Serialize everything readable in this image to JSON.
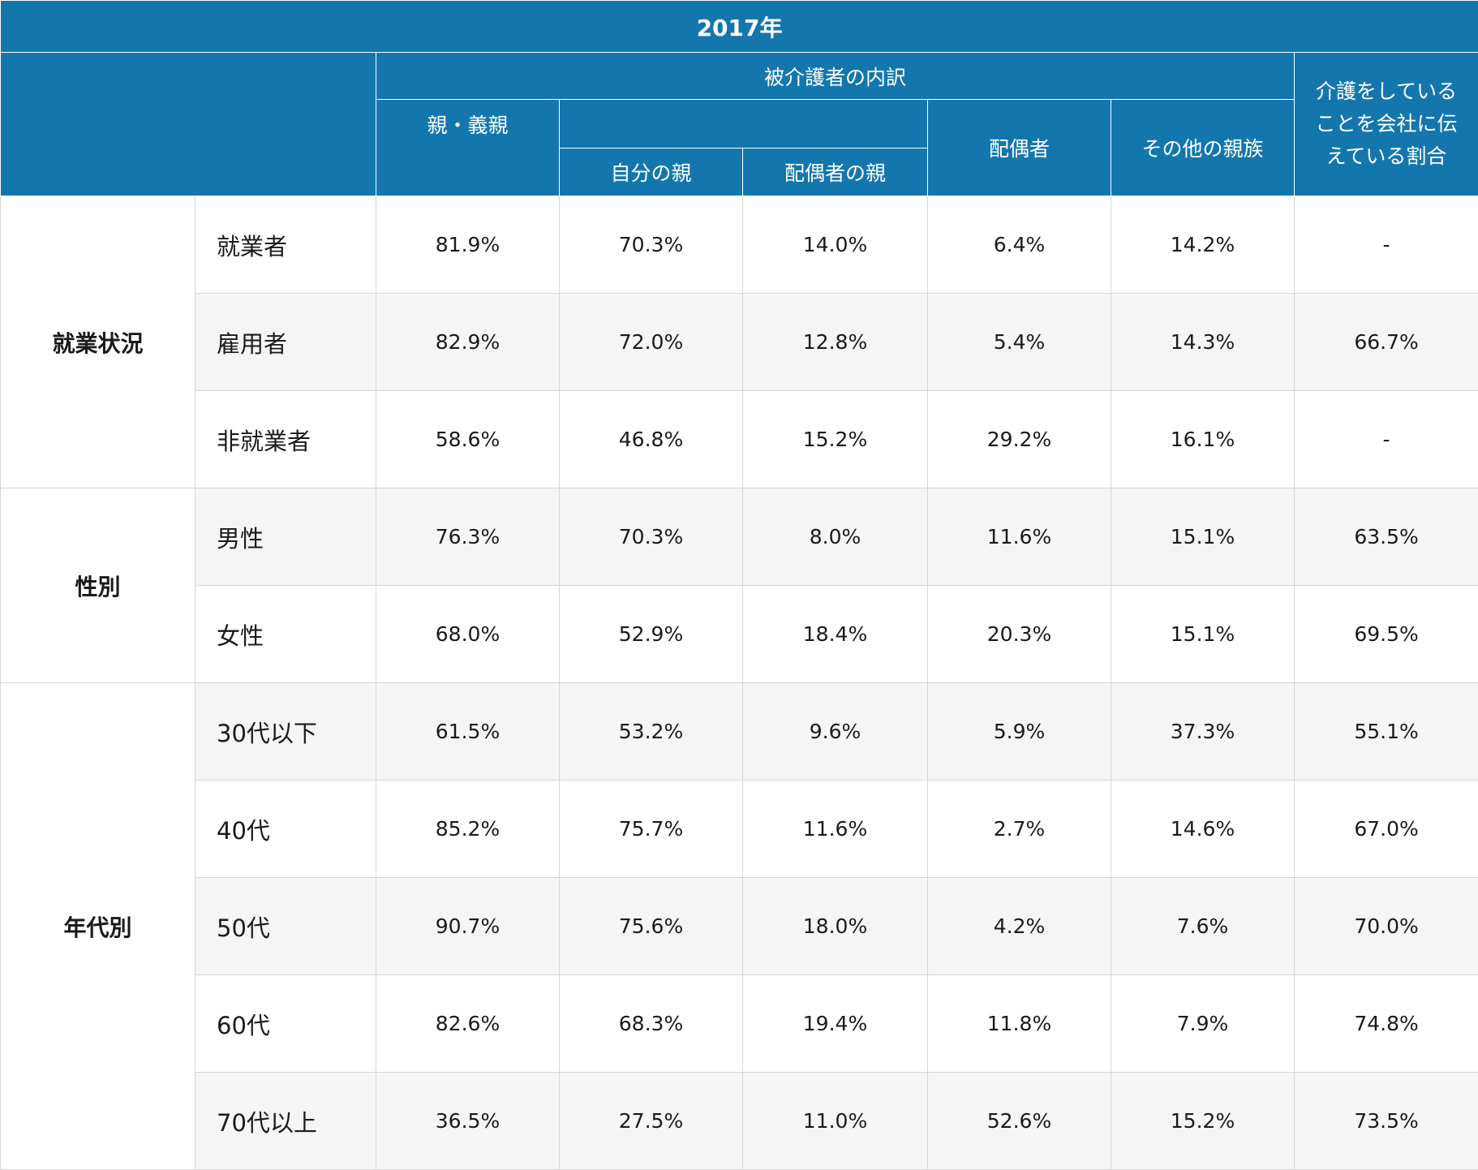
{
  "title": "2017年",
  "header": {
    "breakdown": "被介護者の内訳",
    "parents": "親・義親",
    "own_parent": "自分の親",
    "spouse_parent": "配偶者の親",
    "spouse": "配偶者",
    "other_relatives": "その他の親族",
    "told_company": "介護をしていることを会社に伝えている割合"
  },
  "groups": [
    {
      "label": "就業状況",
      "rows": [
        {
          "label": "就業者",
          "values": [
            "81.9%",
            "70.3%",
            "14.0%",
            "6.4%",
            "14.2%",
            "-"
          ]
        },
        {
          "label": "雇用者",
          "values": [
            "82.9%",
            "72.0%",
            "12.8%",
            "5.4%",
            "14.3%",
            "66.7%"
          ]
        },
        {
          "label": "非就業者",
          "values": [
            "58.6%",
            "46.8%",
            "15.2%",
            "29.2%",
            "16.1%",
            "-"
          ]
        }
      ]
    },
    {
      "label": "性別",
      "rows": [
        {
          "label": "男性",
          "values": [
            "76.3%",
            "70.3%",
            "8.0%",
            "11.6%",
            "15.1%",
            "63.5%"
          ]
        },
        {
          "label": "女性",
          "values": [
            "68.0%",
            "52.9%",
            "18.4%",
            "20.3%",
            "15.1%",
            "69.5%"
          ]
        }
      ]
    },
    {
      "label": "年代別",
      "rows": [
        {
          "label": "30代以下",
          "values": [
            "61.5%",
            "53.2%",
            "9.6%",
            "5.9%",
            "37.3%",
            "55.1%"
          ]
        },
        {
          "label": "40代",
          "values": [
            "85.2%",
            "75.7%",
            "11.6%",
            "2.7%",
            "14.6%",
            "67.0%"
          ]
        },
        {
          "label": "50代",
          "values": [
            "90.7%",
            "75.6%",
            "18.0%",
            "4.2%",
            "7.6%",
            "70.0%"
          ]
        },
        {
          "label": "60代",
          "values": [
            "82.6%",
            "68.3%",
            "19.4%",
            "11.8%",
            "7.9%",
            "74.8%"
          ]
        },
        {
          "label": "70代以上",
          "values": [
            "36.5%",
            "27.5%",
            "11.0%",
            "52.6%",
            "15.2%",
            "73.5%"
          ]
        }
      ]
    }
  ]
}
